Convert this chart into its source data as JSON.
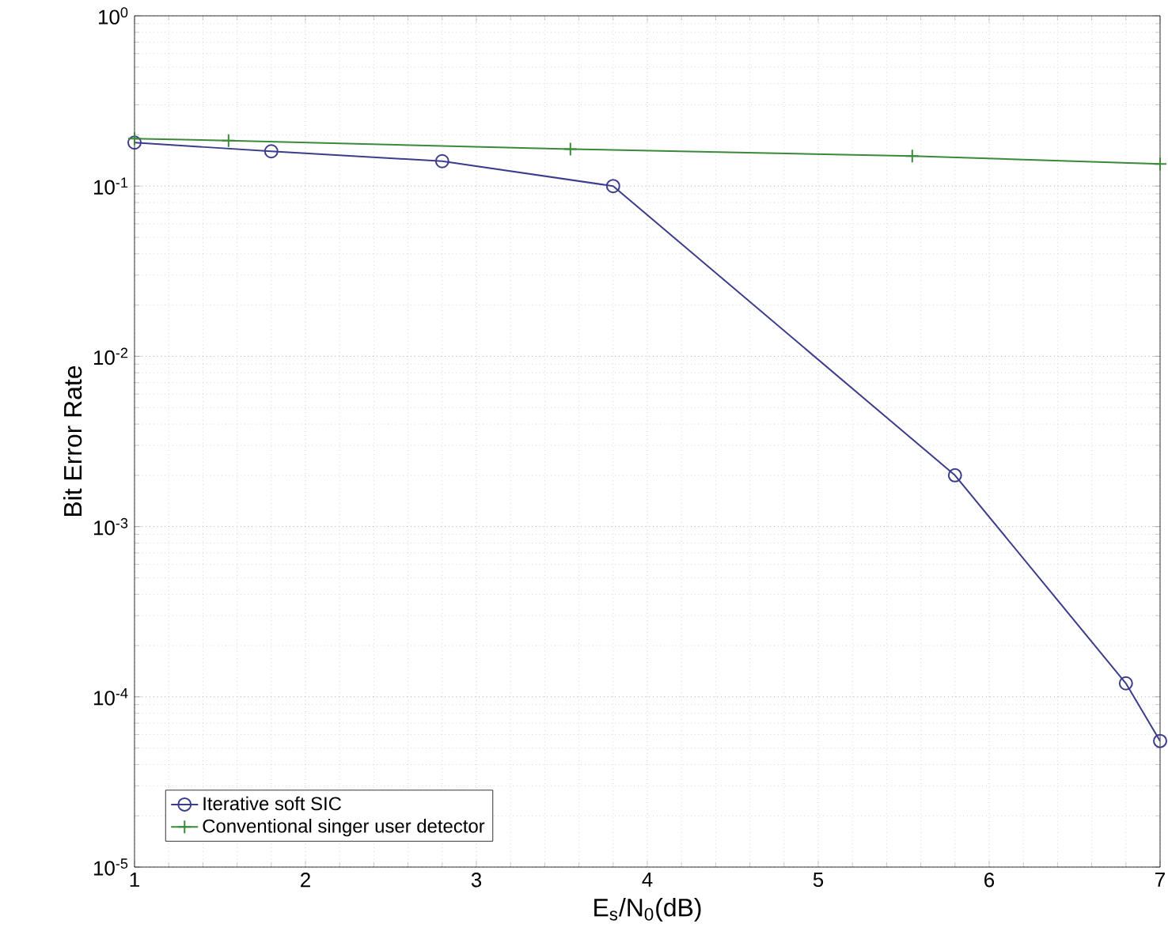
{
  "chart_data": {
    "type": "line",
    "xlabel": "E$_{s}$/N$_{0}$(dB)",
    "ylabel": "Bit Error Rate",
    "log": "y",
    "grid": true,
    "legend": "bottom left",
    "line_style": "solid",
    "xlim": [
      1,
      7
    ],
    "xticks": [
      1,
      2,
      3,
      4,
      5,
      6,
      7
    ],
    "ylim": [
      1e-05,
      1
    ],
    "yticks": [
      {
        "value": 1e-05,
        "label": "10$^{-5}$"
      },
      {
        "value": 0.0001,
        "label": "10$^{-4}$"
      },
      {
        "value": 0.001,
        "label": "10$^{-3}$"
      },
      {
        "value": 0.01,
        "label": "10$^{-2}$"
      },
      {
        "value": 0.1,
        "label": "10$^{-1}$"
      },
      {
        "value": 1,
        "label": "10$^{0}$"
      }
    ],
    "series": [
      {
        "name": "Iterative soft SIC",
        "color": "#3c3c8c",
        "marker": "circle",
        "x": [
          1,
          1.8,
          2.8,
          3.8,
          5.8,
          6.8,
          7
        ],
        "values": [
          0.18,
          0.16,
          0.14,
          0.1,
          0.002,
          0.00012,
          5.5e-05
        ]
      },
      {
        "name": "Conventional singer user detector",
        "color": "#3a8a3a",
        "marker": "cross",
        "x": [
          1,
          1.55,
          3.55,
          5.55,
          7
        ],
        "values": [
          0.19,
          0.185,
          0.165,
          0.15,
          0.135
        ]
      }
    ]
  }
}
